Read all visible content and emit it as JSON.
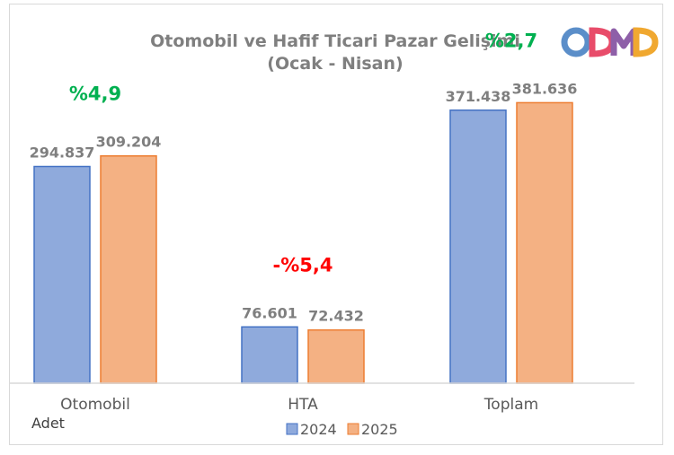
{
  "chart_data": {
    "type": "bar",
    "title": "Otomobil ve Hafif Ticari Pazar Gelişimi",
    "subtitle": "(Ocak - Nisan)",
    "categories": [
      "Otomobil",
      "HTA",
      "Toplam"
    ],
    "series": [
      {
        "name": "2024",
        "values": [
          294837,
          76601,
          371438
        ],
        "labels": [
          "294.837",
          "76.601",
          "371.438"
        ],
        "color": "#8faadc"
      },
      {
        "name": "2025",
        "values": [
          309204,
          72432,
          381636
        ],
        "labels": [
          "309.204",
          "72.432",
          "381.636"
        ],
        "color": "#f4b183"
      }
    ],
    "changes": [
      {
        "label": "%4,9",
        "color": "#00b050"
      },
      {
        "label": "-%5,4",
        "color": "#ff0000"
      },
      {
        "label": "%2,7",
        "color": "#00b050"
      }
    ],
    "ylim": [
      0,
      420000
    ],
    "unit_label": "Adet",
    "grid": false,
    "legend_position": "bottom"
  },
  "logo": {
    "text": "ODMD",
    "colors": [
      "#f0a830",
      "#e84c6a",
      "#8e5fa8",
      "#5b8ec9"
    ]
  }
}
